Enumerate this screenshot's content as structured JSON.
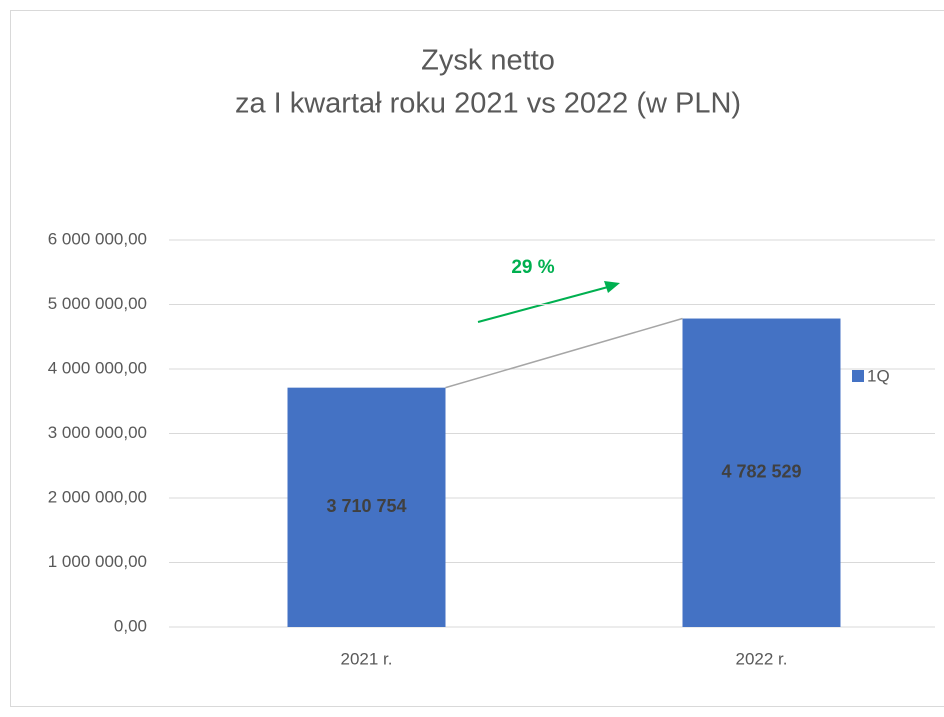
{
  "chart_data": {
    "type": "bar",
    "title": [
      "Zysk netto",
      "za I kwartał roku 2021 vs 2022 (w PLN)"
    ],
    "categories": [
      "2021 r.",
      "2022 r."
    ],
    "series": [
      {
        "name": "1Q",
        "color": "#4472c4",
        "values": [
          3710754,
          4782529
        ],
        "value_labels": [
          "3 710 754",
          "4 782 529"
        ]
      }
    ],
    "ylim": [
      0,
      6000000
    ],
    "yticks": [
      {
        "value": 0,
        "label": "0,00"
      },
      {
        "value": 1000000,
        "label": "1 000 000,00"
      },
      {
        "value": 2000000,
        "label": "2 000 000,00"
      },
      {
        "value": 3000000,
        "label": "3 000 000,00"
      },
      {
        "value": 4000000,
        "label": "4 000 000,00"
      },
      {
        "value": 5000000,
        "label": "5 000 000,00"
      },
      {
        "value": 6000000,
        "label": "6 000 000,00"
      }
    ],
    "grid": true,
    "legend": "right",
    "annotation": "29 %"
  }
}
